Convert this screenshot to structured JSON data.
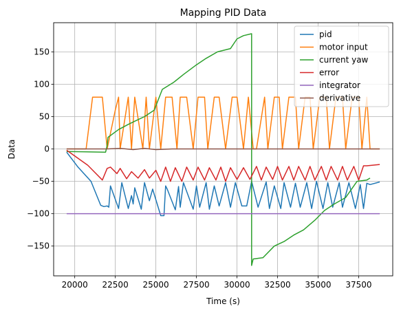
{
  "chart_data": {
    "type": "line",
    "title": "Mapping PID Data",
    "xlabel": "Time (s)",
    "ylabel": "Data",
    "xlim": [
      18700,
      39600
    ],
    "ylim": [
      -196,
      195
    ],
    "xticks": [
      20000,
      22500,
      25000,
      27500,
      30000,
      32500,
      35000,
      37500
    ],
    "yticks": [
      -150,
      -100,
      -50,
      0,
      50,
      100,
      150
    ],
    "grid": true,
    "legend_position": "top-right",
    "series": [
      {
        "name": "pid",
        "color": "#1f77b4",
        "x": [
          19500,
          20200,
          21000,
          21600,
          21800,
          22000,
          22100,
          22200,
          22700,
          22900,
          23300,
          23500,
          23600,
          23700,
          24100,
          24300,
          24600,
          24800,
          25300,
          25500,
          25600,
          25700,
          26200,
          26400,
          26500,
          26700,
          27300,
          27500,
          27700,
          28100,
          28300,
          28600,
          28900,
          29300,
          29600,
          29900,
          30300,
          30600,
          30900,
          31300,
          31800,
          32000,
          32300,
          32700,
          32900,
          33300,
          33600,
          33900,
          34300,
          34600,
          34900,
          35300,
          35600,
          35900,
          36300,
          36500,
          36900,
          37300,
          37600,
          37800,
          38000,
          38200,
          38800
        ],
        "y": [
          -5,
          -28,
          -50,
          -87,
          -89,
          -88,
          -90,
          -57,
          -92,
          -52,
          -92,
          -72,
          -85,
          -60,
          -93,
          -52,
          -80,
          -62,
          -103,
          -103,
          -57,
          -62,
          -94,
          -58,
          -90,
          -52,
          -93,
          -57,
          -90,
          -52,
          -93,
          -57,
          -88,
          -52,
          -90,
          -52,
          -88,
          -88,
          -50,
          -90,
          -51,
          -92,
          -57,
          -92,
          -52,
          -90,
          -53,
          -90,
          -52,
          -92,
          -50,
          -92,
          -52,
          -90,
          -52,
          -90,
          -52,
          -92,
          -55,
          -92,
          -53,
          -55,
          -51
        ]
      },
      {
        "name": "motor input",
        "color": "#ff7f0e",
        "x": [
          19500,
          20700,
          21100,
          21700,
          22000,
          22500,
          22700,
          22800,
          23300,
          23500,
          23700,
          24200,
          24400,
          24600,
          25000,
          25300,
          25600,
          26000,
          26300,
          26500,
          26900,
          27300,
          27600,
          28000,
          28200,
          28600,
          28900,
          29300,
          29700,
          30000,
          30400,
          30700,
          31000,
          31200,
          31700,
          31900,
          32300,
          32600,
          32800,
          33200,
          33600,
          33800,
          34200,
          34500,
          34700,
          35100,
          35500,
          35700,
          36100,
          36500,
          36700,
          37100,
          37500,
          37700,
          38000,
          38200,
          38800
        ],
        "y": [
          0,
          0,
          80,
          80,
          0,
          60,
          80,
          0,
          80,
          0,
          80,
          0,
          80,
          0,
          80,
          0,
          80,
          80,
          0,
          80,
          80,
          0,
          80,
          80,
          0,
          80,
          80,
          0,
          80,
          80,
          0,
          80,
          0,
          0,
          80,
          0,
          80,
          80,
          0,
          80,
          80,
          0,
          80,
          80,
          0,
          80,
          80,
          0,
          80,
          80,
          0,
          80,
          80,
          0,
          80,
          0,
          0
        ]
      },
      {
        "name": "current yaw",
        "color": "#2ca02c",
        "x": [
          19500,
          21900,
          22000,
          22050,
          22700,
          23300,
          23800,
          24300,
          24900,
          25400,
          26100,
          26700,
          27500,
          28100,
          28800,
          29600,
          30000,
          30400,
          30900,
          30900,
          31000,
          31600,
          32300,
          32900,
          33500,
          34100,
          34800,
          35400,
          36000,
          36700,
          37400,
          38000,
          38200
        ],
        "y": [
          -4,
          -5,
          5,
          18,
          30,
          38,
          44,
          50,
          60,
          92,
          103,
          115,
          130,
          140,
          150,
          155,
          170,
          175,
          178,
          -180,
          -170,
          -168,
          -150,
          -143,
          -133,
          -125,
          -110,
          -95,
          -85,
          -75,
          -50,
          -48,
          -45
        ]
      },
      {
        "name": "error",
        "color": "#d62728",
        "x": [
          19500,
          20800,
          21700,
          22000,
          22200,
          22600,
          22800,
          23200,
          23500,
          23900,
          24300,
          24600,
          25000,
          25300,
          25600,
          25900,
          26200,
          26600,
          26900,
          27300,
          27600,
          28000,
          28300,
          28700,
          29000,
          29300,
          29600,
          30000,
          30400,
          30800,
          31200,
          31500,
          31800,
          32200,
          32500,
          32800,
          33200,
          33500,
          33800,
          34200,
          34500,
          34800,
          35200,
          35500,
          35800,
          36200,
          36500,
          36800,
          37200,
          37500,
          37800,
          38000,
          38800
        ],
        "y": [
          -2,
          -25,
          -48,
          -30,
          -28,
          -38,
          -30,
          -46,
          -35,
          -45,
          -32,
          -45,
          -33,
          -50,
          -28,
          -50,
          -29,
          -50,
          -28,
          -48,
          -28,
          -48,
          -29,
          -48,
          -28,
          -50,
          -29,
          -47,
          -29,
          -47,
          -27,
          -48,
          -28,
          -47,
          -27,
          -48,
          -27,
          -48,
          -27,
          -48,
          -27,
          -48,
          -27,
          -48,
          -27,
          -48,
          -27,
          -48,
          -27,
          -48,
          -26,
          -26,
          -24
        ]
      },
      {
        "name": "integrator",
        "color": "#9467bd",
        "x": [
          19500,
          38800
        ],
        "y": [
          -100,
          -100
        ]
      },
      {
        "name": "derivative",
        "color": "#8c564b",
        "x": [
          19500,
          22000,
          22800,
          23600,
          24300,
          25000,
          26000,
          30000,
          38800
        ],
        "y": [
          0,
          0,
          1,
          -1,
          1,
          -1,
          0,
          0,
          0
        ]
      }
    ]
  }
}
